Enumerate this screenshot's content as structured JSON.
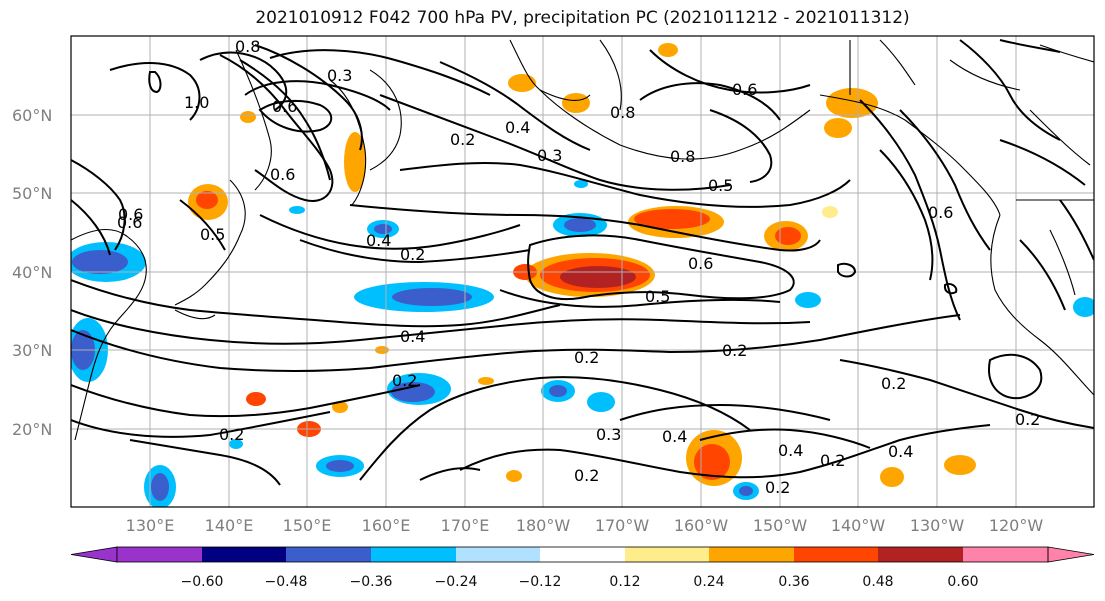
{
  "title": "2021010912 F042 700 hPa PV, precipitation PC (2021011212 - 2021011312)",
  "lat_labels": [
    "60°N",
    "50°N",
    "40°N",
    "30°N",
    "20°N"
  ],
  "lon_labels": [
    "130°E",
    "140°E",
    "150°E",
    "160°E",
    "170°E",
    "180°W",
    "170°W",
    "160°W",
    "150°W",
    "140°W",
    "130°W",
    "120°W"
  ],
  "colorbar": {
    "colors": [
      "#9933cc",
      "#000080",
      "#3a5fcd",
      "#00bfff",
      "#b0e2ff",
      "#ffffff",
      "#ffec8b",
      "#ffa500",
      "#ff4500",
      "#b22222",
      "#ff82ab"
    ],
    "ticks": [
      "−0.60",
      "−0.48",
      "−0.36",
      "−0.24",
      "−0.12",
      "0.12",
      "0.24",
      "0.36",
      "0.48",
      "0.60"
    ]
  },
  "contour_labels": [
    "0.3",
    "0.6",
    "0.8",
    "1.0",
    "0.2",
    "0.4",
    "0.3",
    "0.6",
    "0.8",
    "0.5",
    "0.6",
    "0.5",
    "0.4",
    "0.2",
    "0.6",
    "0.5",
    "0.4",
    "0.2",
    "0.2",
    "0.2",
    "0.2",
    "0.4",
    "0.2",
    "0.4",
    "0.2",
    "0.2",
    "0.2",
    "0.4",
    "0.2",
    "0.6",
    "0.6",
    "0.6",
    "0.8",
    "0.3"
  ]
}
